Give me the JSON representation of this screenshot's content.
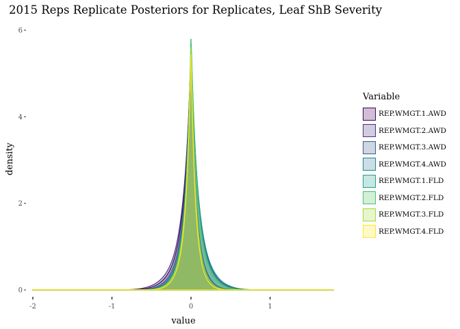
{
  "chart_data": {
    "type": "area",
    "title": "2015 Reps Replicate Posteriors for Replicates, Leaf ShB Severity",
    "xlabel": "value",
    "ylabel": "density",
    "xlim": [
      -2,
      1.8
    ],
    "ylim": [
      0,
      6
    ],
    "x_ticks": [
      "-2",
      "-1",
      "0",
      "1"
    ],
    "y_ticks": [
      "0",
      "2",
      "4",
      "6"
    ],
    "grid": false,
    "legend_title": "Variable",
    "legend_position": "right",
    "series": [
      {
        "name": "REP.WMGT.1.AWD",
        "color": "#440154",
        "peak": 5.55,
        "left_scale": 0.085,
        "right_scale": 0.06
      },
      {
        "name": "REP.WMGT.2.AWD",
        "color": "#46337E",
        "peak": 5.35,
        "left_scale": 0.095,
        "right_scale": 0.062
      },
      {
        "name": "REP.WMGT.3.AWD",
        "color": "#365C8D",
        "peak": 5.6,
        "left_scale": 0.075,
        "right_scale": 0.085
      },
      {
        "name": "REP.WMGT.4.AWD",
        "color": "#277F8E",
        "peak": 5.45,
        "left_scale": 0.07,
        "right_scale": 0.09
      },
      {
        "name": "REP.WMGT.1.FLD",
        "color": "#1FA187",
        "peak": 5.9,
        "left_scale": 0.065,
        "right_scale": 0.08
      },
      {
        "name": "REP.WMGT.2.FLD",
        "color": "#4AC16D",
        "peak": 5.85,
        "left_scale": 0.06,
        "right_scale": 0.075
      },
      {
        "name": "REP.WMGT.3.FLD",
        "color": "#A0DA39",
        "peak": 5.7,
        "left_scale": 0.062,
        "right_scale": 0.055
      },
      {
        "name": "REP.WMGT.4.FLD",
        "color": "#FDE725",
        "peak": 5.55,
        "left_scale": 0.058,
        "right_scale": 0.05
      }
    ]
  }
}
